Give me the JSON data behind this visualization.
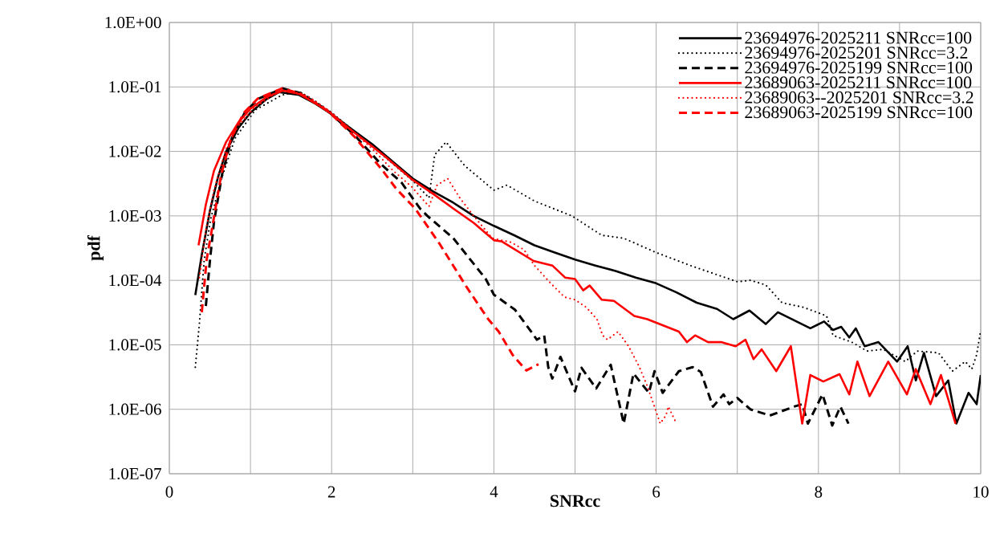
{
  "chart_data": {
    "type": "line",
    "xlabel": "SNRcc",
    "ylabel": "pdf",
    "xlim": [
      0,
      10
    ],
    "ylim": [
      1e-07,
      1
    ],
    "log": "y",
    "grid": true,
    "legend": "top right",
    "xticks": [
      0,
      {
        "value": 1,
        "label": null
      },
      2,
      {
        "value": 3,
        "label": null
      },
      4,
      {
        "value": 5,
        "label": null
      },
      6,
      {
        "value": 7,
        "label": null
      },
      8,
      {
        "value": 9,
        "label": null
      },
      10
    ],
    "yticks": [
      {
        "value": 1e-07,
        "label": "1.0E-07"
      },
      {
        "value": 1e-06,
        "label": "1.0E-06"
      },
      {
        "value": 1e-05,
        "label": "1.0E-05"
      },
      {
        "value": 0.0001,
        "label": "1.0E-04"
      },
      {
        "value": 0.001,
        "label": "1.0E-03"
      },
      {
        "value": 0.01,
        "label": "1.0E-02"
      },
      {
        "value": 0.1,
        "label": "1.0E-01"
      },
      {
        "value": 1,
        "label": "1.0E+00"
      }
    ],
    "series": [
      {
        "name": "23694976-2025211 SNRcc=100",
        "color": "#000000",
        "line_style": "solid",
        "x": [
          0.32,
          0.4,
          0.5,
          0.6,
          0.7,
          0.85,
          1.0,
          1.2,
          1.35,
          1.6,
          1.8,
          2.0,
          2.25,
          2.5,
          2.75,
          3.0,
          3.25,
          3.5,
          3.75,
          4.0,
          4.25,
          4.5,
          4.75,
          5.0,
          5.25,
          5.5,
          5.75,
          6.0,
          6.25,
          6.5,
          6.75,
          6.95,
          7.15,
          7.35,
          7.5,
          7.9,
          8.07,
          8.18,
          8.28,
          8.38,
          8.46,
          8.57,
          8.74,
          8.97,
          9.1,
          9.2,
          9.3,
          9.45,
          9.6,
          9.7,
          9.85,
          9.95,
          10
        ],
        "values": [
          5.9e-05,
          0.00025,
          0.0012,
          0.004,
          0.01,
          0.023,
          0.04,
          0.065,
          0.083,
          0.075,
          0.055,
          0.038,
          0.022,
          0.013,
          0.007,
          0.0038,
          0.0024,
          0.0016,
          0.001,
          0.0007,
          0.0005,
          0.00035,
          0.00027,
          0.00021,
          0.00017,
          0.00014,
          0.00011,
          9e-05,
          6.5e-05,
          4.5e-05,
          3.6e-05,
          2.5e-05,
          3.4e-05,
          2.1e-05,
          3.2e-05,
          1.8e-05,
          2.3e-05,
          1.7e-05,
          1.9e-05,
          1.3e-05,
          1.8e-05,
          9.5e-06,
          1.1e-05,
          5.5e-06,
          9.5e-06,
          2.8e-06,
          7.5e-06,
          1.6e-06,
          2.8e-06,
          6e-07,
          1.8e-06,
          1.2e-06,
          3.4e-06
        ]
      },
      {
        "name": "23694976-2025201 SNRcc=3.2",
        "color": "#000000",
        "line_style": "dotted",
        "x": [
          0.32,
          0.37,
          0.43,
          0.51,
          0.64,
          0.81,
          1.06,
          1.39,
          1.6,
          1.8,
          2.0,
          2.25,
          2.5,
          2.75,
          3.0,
          3.2,
          3.27,
          3.41,
          3.64,
          4.0,
          4.16,
          4.5,
          4.96,
          5.33,
          5.6,
          6.0,
          6.42,
          7.0,
          7.16,
          7.35,
          7.55,
          7.82,
          8.1,
          8.18,
          8.41,
          8.6,
          8.8,
          9.07,
          9.22,
          9.48,
          9.65,
          9.81,
          9.89,
          9.95,
          10
        ],
        "values": [
          4.5e-06,
          2.1e-05,
          0.00021,
          0.0009,
          0.0037,
          0.016,
          0.044,
          0.075,
          0.085,
          0.06,
          0.04,
          0.022,
          0.012,
          0.0065,
          0.0035,
          0.0019,
          0.0088,
          0.014,
          0.006,
          0.0025,
          0.003,
          0.0017,
          0.001,
          0.0005,
          0.00045,
          0.00027,
          0.00017,
          9.5e-05,
          0.0001,
          8.5e-05,
          4.5e-05,
          3.8e-05,
          2.8e-05,
          1.4e-05,
          1.1e-05,
          8e-06,
          8.5e-06,
          5.5e-06,
          8e-06,
          7.5e-06,
          3.9e-06,
          5.5e-06,
          4.2e-06,
          7e-06,
          1.7e-05
        ]
      },
      {
        "name": "23694976-2025199 SNRcc=100",
        "color": "#000000",
        "line_style": "dashed",
        "x": [
          0.45,
          0.5,
          0.55,
          0.65,
          0.77,
          0.93,
          1.1,
          1.4,
          1.62,
          1.95,
          2.28,
          2.6,
          2.86,
          3.09,
          3.18,
          3.5,
          3.9,
          4.0,
          4.26,
          4.46,
          4.53,
          4.62,
          4.67,
          4.72,
          4.82,
          5.0,
          5.08,
          5.26,
          5.44,
          5.6,
          5.72,
          5.91,
          5.98,
          6.08,
          6.28,
          6.45,
          6.55,
          6.7,
          6.83,
          6.9,
          7.0,
          7.16,
          7.4,
          7.7,
          7.8,
          7.87,
          8.05,
          8.17,
          8.27,
          8.37
        ],
        "values": [
          4e-05,
          0.0002,
          0.0008,
          0.0044,
          0.016,
          0.04,
          0.066,
          0.095,
          0.08,
          0.043,
          0.018,
          0.0065,
          0.0033,
          0.0013,
          0.001,
          0.00045,
          0.000105,
          6e-05,
          3.5e-05,
          1.6e-05,
          1.2e-05,
          1.4e-05,
          4.5e-06,
          3e-06,
          6.5e-06,
          1.9e-06,
          4.4e-06,
          2.1e-06,
          4.9e-06,
          6e-07,
          3.6e-06,
          1.8e-06,
          3.9e-06,
          1.8e-06,
          3.9e-06,
          4.5e-06,
          3.8e-06,
          1.1e-06,
          1.7e-06,
          1.2e-06,
          1.5e-06,
          1e-06,
          8e-07,
          1.1e-06,
          1.2e-06,
          6e-07,
          1.7e-06,
          5.6e-07,
          1.1e-06,
          6e-07
        ]
      },
      {
        "name": "23689063-2025211 SNRcc=100",
        "color": "#ff0000",
        "line_style": "solid",
        "x": [
          0.36,
          0.45,
          0.55,
          0.7,
          0.85,
          1.0,
          1.2,
          1.4,
          1.6,
          1.8,
          2.0,
          2.25,
          2.5,
          2.66,
          3.0,
          3.25,
          3.5,
          3.75,
          4.0,
          4.1,
          4.49,
          4.72,
          4.88,
          5.0,
          5.1,
          5.18,
          5.33,
          5.48,
          5.73,
          5.89,
          6.28,
          6.38,
          6.48,
          6.64,
          6.8,
          6.98,
          7.1,
          7.2,
          7.3,
          7.48,
          7.66,
          7.8,
          7.9,
          8.06,
          8.26,
          8.38,
          8.48,
          8.63,
          8.86,
          9.09,
          9.2,
          9.38,
          9.51,
          9.69
        ],
        "values": [
          0.00035,
          0.0015,
          0.005,
          0.014,
          0.028,
          0.046,
          0.07,
          0.088,
          0.078,
          0.056,
          0.038,
          0.021,
          0.012,
          0.0083,
          0.0036,
          0.0022,
          0.0013,
          0.00078,
          0.00042,
          0.0004,
          0.0002,
          0.00017,
          0.00011,
          0.000105,
          7e-05,
          8.3e-05,
          5e-05,
          4.8e-05,
          2.8e-05,
          2.5e-05,
          1.6e-05,
          1.1e-05,
          1.4e-05,
          1.1e-05,
          1.1e-05,
          9.5e-06,
          1.2e-05,
          6e-06,
          8.5e-06,
          3.9e-06,
          9.5e-06,
          6e-07,
          3.4e-06,
          2.7e-06,
          3.5e-06,
          1.7e-06,
          5.5e-06,
          1.6e-06,
          5.5e-06,
          1.7e-06,
          4.2e-06,
          1.2e-06,
          3.4e-06,
          6e-07
        ]
      },
      {
        "name": "23689063--2025201 SNRcc=3.2",
        "color": "#ff0000",
        "line_style": "dotted",
        "x": [
          0.37,
          0.45,
          0.55,
          0.7,
          0.85,
          1.05,
          1.3,
          1.45,
          1.7,
          2.0,
          2.25,
          2.5,
          2.76,
          2.99,
          3.2,
          3.3,
          3.43,
          3.58,
          3.75,
          3.98,
          4.21,
          4.37,
          4.5,
          4.7,
          4.87,
          5.0,
          5.14,
          5.27,
          5.34,
          5.4,
          5.53,
          5.66,
          5.79,
          5.89,
          5.99,
          6.05,
          6.12,
          6.15,
          6.25
        ],
        "values": [
          0.00011,
          0.0006,
          0.0025,
          0.011,
          0.025,
          0.048,
          0.078,
          0.09,
          0.073,
          0.04,
          0.021,
          0.011,
          0.005,
          0.0028,
          0.0014,
          0.003,
          0.0038,
          0.0019,
          0.001,
          0.00045,
          0.00039,
          0.0003,
          0.00017,
          9e-05,
          5.5e-05,
          5e-05,
          3.8e-05,
          2.5e-05,
          1.4e-05,
          1.2e-05,
          1.6e-05,
          9.5e-06,
          4.6e-06,
          2.3e-06,
          1e-06,
          6e-07,
          8e-07,
          1.1e-06,
          6e-07
        ]
      },
      {
        "name": "23689063-2025199 SNRcc=100",
        "color": "#ff0000",
        "line_style": "dashed",
        "x": [
          0.4,
          0.46,
          0.54,
          0.64,
          0.76,
          0.92,
          1.09,
          1.39,
          1.62,
          1.95,
          2.28,
          2.61,
          2.8,
          3.03,
          3.33,
          3.66,
          3.93,
          4.06,
          4.23,
          4.4,
          4.55
        ],
        "values": [
          3.2e-05,
          0.00021,
          0.0008,
          0.0044,
          0.016,
          0.04,
          0.066,
          0.095,
          0.078,
          0.043,
          0.017,
          0.0054,
          0.0026,
          0.0013,
          0.00037,
          8e-05,
          2.5e-05,
          1.6e-05,
          7e-06,
          4e-06,
          5e-06
        ]
      }
    ]
  }
}
